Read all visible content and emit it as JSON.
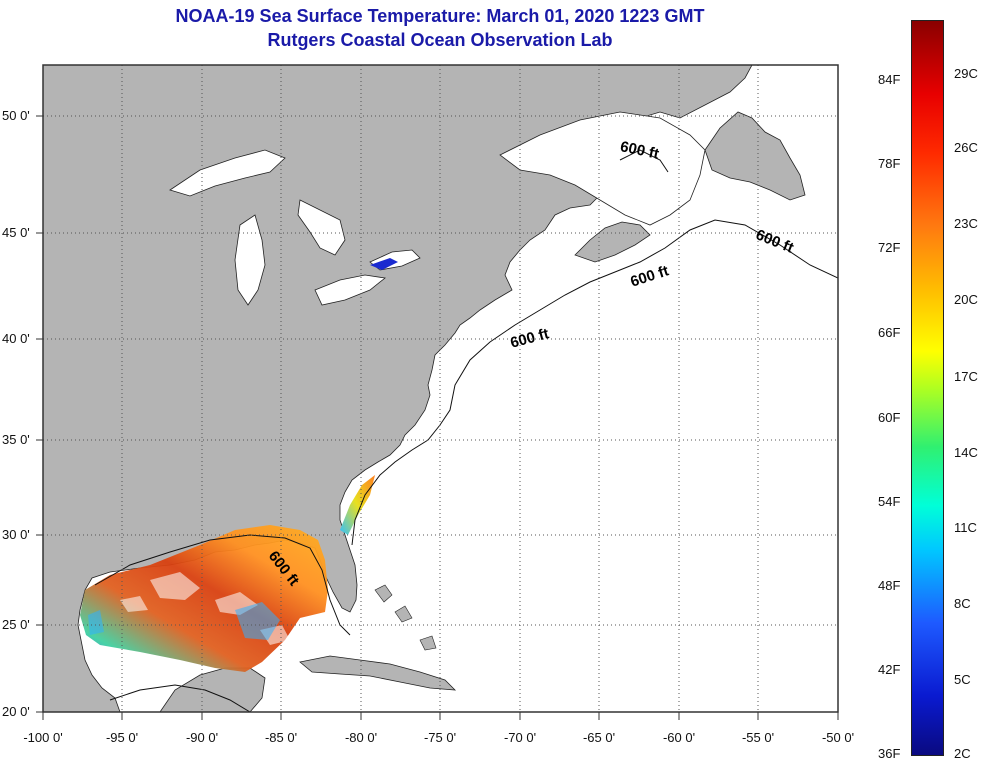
{
  "title": {
    "line1": "NOAA-19 Sea Surface Temperature:  March 01, 2020 1223 GMT",
    "line2": "Rutgers Coastal Ocean Observation Lab"
  },
  "map": {
    "lat_labels": [
      "50 0'",
      "45 0'",
      "40 0'",
      "35 0'",
      "30 0'",
      "25 0'",
      "20 0'"
    ],
    "lon_labels": [
      "-100 0'",
      "-95 0'",
      "-90 0'",
      "-85 0'",
      "-80 0'",
      "-75 0'",
      "-70 0'",
      "-65 0'",
      "-60 0'",
      "-55 0'",
      "-50 0'"
    ],
    "contour_label": "600 ft",
    "colors": {
      "land": "#b4b4b4",
      "ocean": "#ffffff",
      "grid": "#555555",
      "title": "#1a1aa8"
    }
  },
  "colorbar": {
    "fahrenheit": [
      "84F",
      "78F",
      "72F",
      "66F",
      "60F",
      "54F",
      "48F",
      "42F",
      "36F"
    ],
    "celsius": [
      "29C",
      "26C",
      "23C",
      "20C",
      "17C",
      "14C",
      "11C",
      "8C",
      "5C",
      "2C"
    ]
  }
}
